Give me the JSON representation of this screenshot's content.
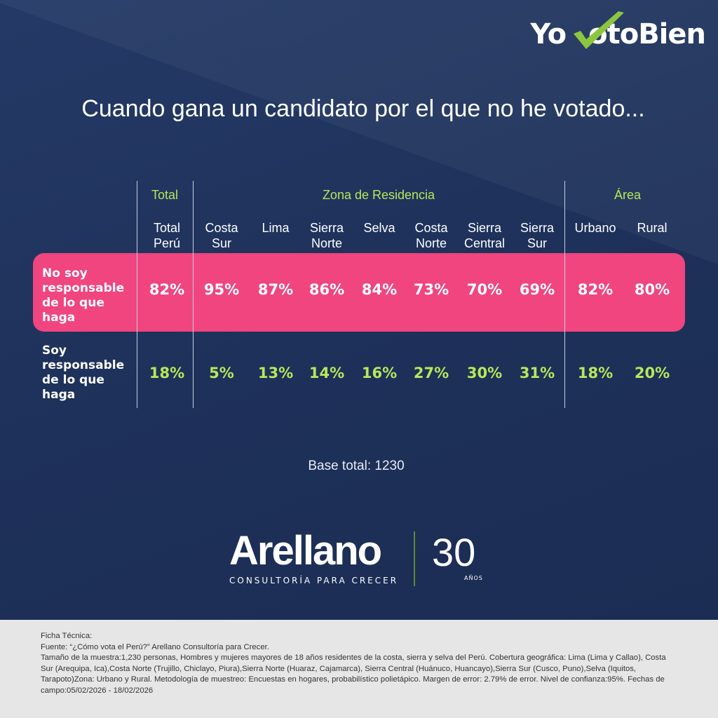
{
  "logo_top": "YoVotoBien",
  "title": "Cuando gana un candidato por el que no he votado...",
  "chart_data": {
    "type": "table",
    "title": "Cuando gana un candidato por el que no he votado...",
    "groups": [
      "Total",
      "Zona de Residencia",
      "Área"
    ],
    "columns": [
      {
        "label": "Total Perú",
        "group": 0
      },
      {
        "label": "Costa Sur",
        "group": 1
      },
      {
        "label": "Lima",
        "group": 1
      },
      {
        "label": "Sierra Norte",
        "group": 1
      },
      {
        "label": "Selva",
        "group": 1
      },
      {
        "label": "Costa Norte",
        "group": 1
      },
      {
        "label": "Sierra Central",
        "group": 1
      },
      {
        "label": "Sierra Sur",
        "group": 1
      },
      {
        "label": "Urbano",
        "group": 2
      },
      {
        "label": "Rural",
        "group": 2
      }
    ],
    "rows": [
      {
        "label": "No soy responsable de lo que haga",
        "values": [
          "82%",
          "95%",
          "87%",
          "86%",
          "84%",
          "73%",
          "70%",
          "69%",
          "82%",
          "80%"
        ],
        "highlight_color": "#f0457f"
      },
      {
        "label": "Soy responsable de lo que haga",
        "values": [
          "18%",
          "5%",
          "13%",
          "14%",
          "16%",
          "27%",
          "30%",
          "31%",
          "18%",
          "20%"
        ],
        "value_color": "#b5e85a"
      }
    ]
  },
  "base": "Base total: 1230",
  "logo_bottom": {
    "name": "Arellano",
    "tagline": "CONSULTORÍA PARA CRECER",
    "years": "30",
    "years_label": "AÑOS"
  },
  "footer": [
    "Ficha Técnica:",
    "Fuente: “¿Cómo vota el Perú?” Arellano Consultoría para Crecer.",
    "Tamaño de la muestra:1,230 personas, Hombres y mujeres mayores de 18 años residentes de la costa, sierra y selva del Perú. Cobertura geográfica: Lima (Lima y Callao), Costa Sur (Arequipa, Ica),Costa Norte (Trujillo, Chiclayo, Piura),Sierra Norte (Huaraz, Cajamarca), Sierra Central (Huánuco, Huancayo),Sierra Sur (Cusco, Puno),Selva (Iquitos, Tarapoto)Zona: Urbano y Rural. Metodología de muestreo: Encuestas en hogares, probabilístico polietápico. Margen de error: 2.79% de error. Nivel de confianza:95%. Fechas de campo:05/02/2026 - 18/02/2026"
  ],
  "colors": {
    "background": "#1f3158",
    "highlight": "#f0457f",
    "accent": "#b5e85a"
  }
}
